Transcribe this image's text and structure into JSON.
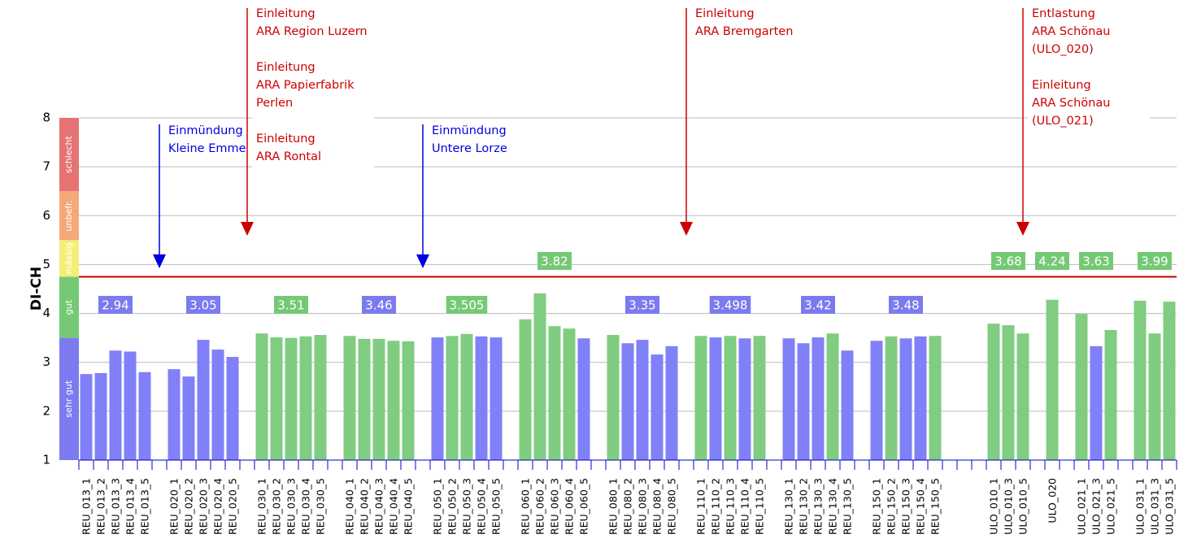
{
  "chart_data": {
    "type": "bar",
    "y_label": "DI-CH",
    "ylim": [
      1,
      8
    ],
    "yticks": [
      1,
      2,
      3,
      4,
      5,
      6,
      7,
      8
    ],
    "grid": true,
    "categories": [
      "REU_013_1",
      "REU_013_2",
      "REU_013_3",
      "REU_013_4",
      "REU_013_5",
      null,
      "REU_020_1",
      "REU_020_2",
      "REU_020_3",
      "REU_020_4",
      "REU_020_5",
      null,
      "REU_030_1",
      "REU_030_2",
      "REU_030_3",
      "REU_030_4",
      "REU_030_5",
      null,
      "REU_040_1",
      "REU_040_2",
      "REU_040_3",
      "REU_040_4",
      "REU_040_5",
      null,
      "REU_050_1",
      "REU_050_2",
      "REU_050_3",
      "REU_050_4",
      "REU_050_5",
      null,
      "REU_060_1",
      "REU_060_2",
      "REU_060_3",
      "REU_060_4",
      "REU_060_5",
      null,
      "REU_080_1",
      "REU_080_2",
      "REU_080_3",
      "REU_080_4",
      "REU_080_5",
      null,
      "REU_110_1",
      "REU_110_2",
      "REU_110_3",
      "REU_110_4",
      "REU_110_5",
      null,
      "REU_130_1",
      "REU_130_2",
      "REU_130_3",
      "REU_130_4",
      "REU_130_5",
      null,
      "REU_150_1",
      "REU_150_2",
      "REU_150_3",
      "REU_150_4",
      "REU_150_5",
      null,
      null,
      null,
      "ULO_010_1",
      "ULO_010_3",
      "ULO_010_5",
      null,
      "ULO_020",
      null,
      "ULO_021_1",
      "ULO_021_3",
      "ULO_021_5",
      null,
      "ULO_031_1",
      "ULO_031_3",
      "ULO_031_5"
    ],
    "values": [
      2.76,
      2.78,
      3.24,
      3.22,
      2.8,
      null,
      2.86,
      2.71,
      3.46,
      3.26,
      3.11,
      null,
      3.59,
      3.51,
      3.5,
      3.53,
      3.56,
      null,
      3.54,
      3.48,
      3.48,
      3.44,
      3.43,
      null,
      3.51,
      3.54,
      3.58,
      3.53,
      3.51,
      null,
      3.88,
      4.41,
      3.74,
      3.69,
      3.49,
      null,
      3.56,
      3.39,
      3.46,
      3.16,
      3.33,
      null,
      3.54,
      3.51,
      3.54,
      3.49,
      3.54,
      null,
      3.49,
      3.39,
      3.51,
      3.59,
      3.24,
      null,
      3.44,
      3.53,
      3.49,
      3.53,
      3.54,
      null,
      null,
      null,
      3.79,
      3.76,
      3.59,
      null,
      4.28,
      null,
      3.99,
      3.33,
      3.66,
      null,
      4.26,
      3.59,
      4.24
    ],
    "colors": [
      "#8080f8",
      "#8080f8",
      "#8080f8",
      "#8080f8",
      "#8080f8",
      null,
      "#8080f8",
      "#8080f8",
      "#8080f8",
      "#8080f8",
      "#8080f8",
      null,
      "#80cc80",
      "#80cc80",
      "#80cc80",
      "#80cc80",
      "#80cc80",
      null,
      "#80cc80",
      "#80cc80",
      "#80cc80",
      "#80cc80",
      "#80cc80",
      null,
      "#8080f8",
      "#80cc80",
      "#80cc80",
      "#8080f8",
      "#8080f8",
      null,
      "#80cc80",
      "#80cc80",
      "#80cc80",
      "#80cc80",
      "#8080f8",
      null,
      "#80cc80",
      "#8080f8",
      "#8080f8",
      "#8080f8",
      "#8080f8",
      null,
      "#80cc80",
      "#8080f8",
      "#80cc80",
      "#8080f8",
      "#80cc80",
      null,
      "#8080f8",
      "#8080f8",
      "#8080f8",
      "#80cc80",
      "#8080f8",
      null,
      "#8080f8",
      "#80cc80",
      "#8080f8",
      "#8080f8",
      "#80cc80",
      null,
      null,
      null,
      "#80cc80",
      "#80cc80",
      "#80cc80",
      null,
      "#80cc80",
      null,
      "#80cc80",
      "#8080f8",
      "#80cc80",
      null,
      "#80cc80",
      "#80cc80",
      "#80cc80"
    ],
    "group_means": [
      {
        "value": 2.94,
        "color": "#7b7bef"
      },
      {
        "value": 3.05,
        "color": "#7b7bef"
      },
      {
        "value": 3.51,
        "color": "#75c975"
      },
      {
        "value": 3.46,
        "color": "#7b7bef"
      },
      {
        "value": 3.505,
        "color": "#75c975"
      },
      {
        "value": 3.82,
        "color": "#75c975"
      },
      {
        "value": 3.35,
        "color": "#7b7bef"
      },
      {
        "value": 3.498,
        "color": "#7b7bef"
      },
      {
        "value": 3.42,
        "color": "#7b7bef"
      },
      {
        "value": 3.48,
        "color": "#7b7bef"
      },
      {
        "value": 3.68,
        "color": "#75c975"
      },
      {
        "value": 4.24,
        "color": "#75c975"
      },
      {
        "value": 3.63,
        "color": "#75c975"
      },
      {
        "value": 3.99,
        "color": "#75c975"
      }
    ],
    "bands": [
      {
        "from": 1,
        "to": 3.5,
        "label": "sehr gut",
        "color": "#7b7bef"
      },
      {
        "from": 3.5,
        "to": 4.75,
        "label": "gut",
        "color": "#75c975"
      },
      {
        "from": 4.75,
        "to": 5.5,
        "label": "mässig",
        "color": "#f4ef78"
      },
      {
        "from": 5.5,
        "to": 6.5,
        "label": "unbefr.",
        "color": "#f5a878"
      },
      {
        "from": 6.5,
        "to": 8,
        "label": "schlecht",
        "color": "#e57373"
      }
    ],
    "threshold": 4.75,
    "threshold_color": "#cc0000",
    "annotations": [
      {
        "color": "#0000e0",
        "blocks": [
          [
            "Einmündung",
            "Kleine Emme"
          ]
        ]
      },
      {
        "color": "#cc0000",
        "blocks": [
          [
            "Einleitung",
            "ARA Region Luzern"
          ],
          [
            "Einleitung",
            "ARA Papierfabrik",
            "Perlen"
          ],
          [
            "Einleitung",
            "ARA Rontal"
          ]
        ]
      },
      {
        "color": "#0000e0",
        "blocks": [
          [
            "Einmündung",
            "Untere Lorze"
          ]
        ]
      },
      {
        "color": "#cc0000",
        "blocks": [
          [
            "Einleitung",
            "ARA Bremgarten"
          ]
        ]
      },
      {
        "color": "#cc0000",
        "blocks": [
          [
            "Entlastung",
            "ARA Schönau",
            "(ULO_020)"
          ],
          [
            "Einleitung",
            "ARA Schönau",
            "(ULO_021)"
          ]
        ]
      }
    ]
  }
}
